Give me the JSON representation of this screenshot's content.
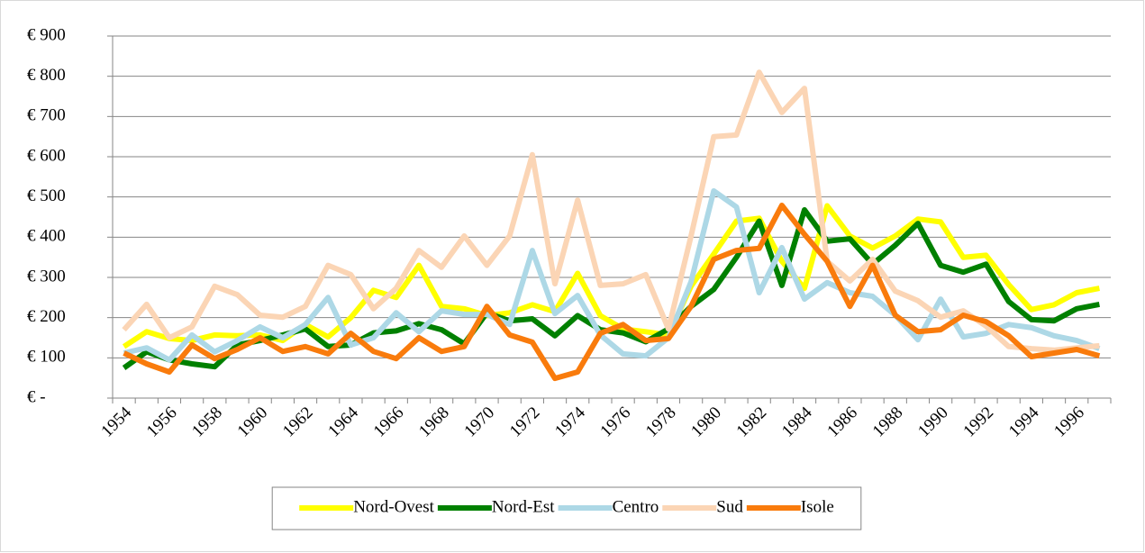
{
  "chart_data": {
    "type": "line",
    "categories": [
      "1954",
      null,
      "1956",
      null,
      "1958",
      null,
      "1960",
      null,
      "1962",
      null,
      "1964",
      null,
      "1966",
      null,
      "1968",
      null,
      "1970",
      null,
      "1972",
      null,
      "1974",
      null,
      "1976",
      null,
      "1978",
      null,
      "1980",
      null,
      "1982",
      null,
      "1984",
      null,
      "1986",
      null,
      "1988",
      null,
      "1990",
      null,
      "1992",
      null,
      "1994",
      null,
      "1996",
      null
    ],
    "series": [
      {
        "name": "Nord-Ovest",
        "color": "#ffff00",
        "values": [
          128,
          165,
          148,
          143,
          157,
          155,
          157,
          143,
          183,
          152,
          200,
          268,
          250,
          330,
          228,
          222,
          205,
          212,
          232,
          215,
          310,
          205,
          172,
          165,
          157,
          278,
          358,
          440,
          447,
          340,
          273,
          478,
          403,
          373,
          403,
          445,
          438,
          350,
          355,
          282,
          220,
          232,
          262,
          273
        ]
      },
      {
        "name": "Nord-Est",
        "color": "#008000",
        "values": [
          75,
          115,
          95,
          85,
          78,
          132,
          143,
          157,
          172,
          128,
          132,
          162,
          167,
          185,
          170,
          135,
          212,
          192,
          197,
          155,
          205,
          170,
          162,
          140,
          172,
          228,
          270,
          350,
          440,
          280,
          468,
          390,
          396,
          333,
          380,
          434,
          330,
          313,
          333,
          240,
          195,
          192,
          222,
          233
        ]
      },
      {
        "name": "Centro",
        "color": "#add8e6",
        "values": [
          112,
          125,
          95,
          157,
          115,
          143,
          177,
          150,
          183,
          250,
          132,
          150,
          212,
          165,
          217,
          208,
          208,
          183,
          367,
          210,
          255,
          157,
          110,
          105,
          150,
          289,
          515,
          475,
          262,
          374,
          246,
          287,
          262,
          253,
          206,
          145,
          246,
          152,
          161,
          183,
          175,
          155,
          143,
          123
        ]
      },
      {
        "name": "Sud",
        "color": "#fbd5b5",
        "values": [
          170,
          233,
          150,
          177,
          278,
          257,
          206,
          201,
          228,
          330,
          307,
          222,
          273,
          367,
          325,
          403,
          330,
          403,
          605,
          284,
          492,
          280,
          284,
          307,
          172,
          403,
          650,
          654,
          810,
          710,
          770,
          340,
          291,
          345,
          266,
          242,
          201,
          217,
          179,
          128,
          123,
          119,
          125,
          130
        ]
      },
      {
        "name": "Isole",
        "color": "#f97b0c",
        "values": [
          112,
          85,
          65,
          132,
          98,
          121,
          150,
          116,
          128,
          110,
          161,
          116,
          98,
          150,
          116,
          128,
          228,
          157,
          139,
          49,
          65,
          161,
          183,
          143,
          148,
          228,
          345,
          367,
          372,
          479,
          407,
          340,
          228,
          330,
          206,
          165,
          170,
          206,
          190,
          155,
          103,
          112,
          121,
          105
        ]
      }
    ],
    "ylim": [
      0,
      900
    ],
    "yticks": [
      {
        "value": 0,
        "label": "€ -"
      },
      {
        "value": 100,
        "label": "€ 100"
      },
      {
        "value": 200,
        "label": "€ 200"
      },
      {
        "value": 300,
        "label": "€ 300"
      },
      {
        "value": 400,
        "label": "€ 400"
      },
      {
        "value": 500,
        "label": "€ 500"
      },
      {
        "value": 600,
        "label": "€ 600"
      },
      {
        "value": 700,
        "label": "€ 700"
      },
      {
        "value": 800,
        "label": "€ 800"
      },
      {
        "value": 900,
        "label": "€ 900"
      }
    ],
    "grid": true,
    "legend": "bottom"
  }
}
